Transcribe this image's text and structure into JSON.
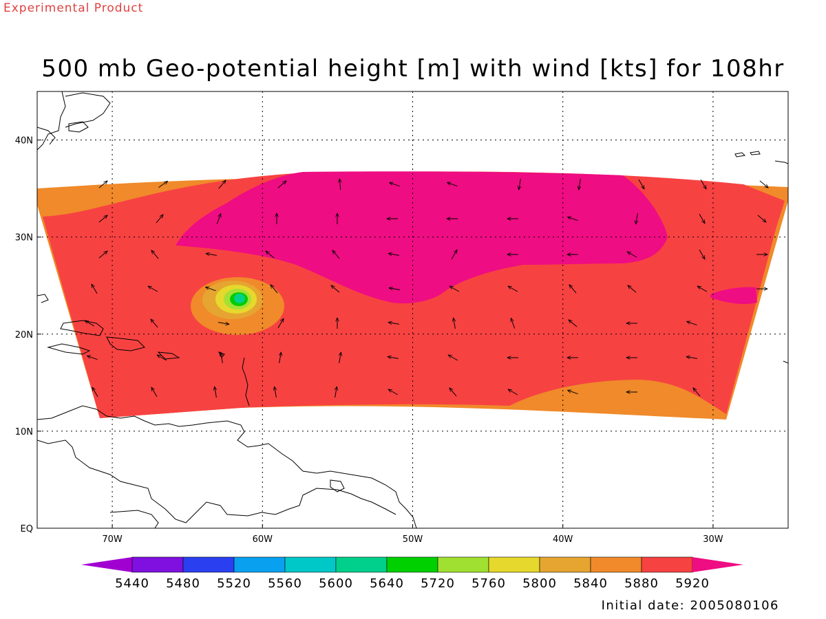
{
  "header": {
    "experimental_label": "Experimental Product",
    "title": "500 mb Geo-potential height [m] with wind [kts] for 108hr"
  },
  "footer": {
    "initial_date": "Initial date: 2005080106"
  },
  "map": {
    "lon_range": [
      -75,
      -25
    ],
    "lat_range": [
      0,
      45
    ],
    "lon_ticks": [
      "70W",
      "60W",
      "50W",
      "40W",
      "30W"
    ],
    "lat_ticks": [
      "EQ",
      "10N",
      "20N",
      "30N",
      "40N"
    ],
    "grid": "dotted",
    "colors": {
      "c5840": "#e6a531",
      "c5880": "#f08a2a",
      "c5920": "#f74242",
      "c5960": "#ee0d82",
      "c5800": "#e6d82c",
      "c5760": "#a5e036",
      "c5720": "#1ac95a",
      "c5640": "#00cc00",
      "c5600": "#00d08c"
    }
  },
  "colorbar": {
    "labels": [
      "5440",
      "5480",
      "5520",
      "5560",
      "5600",
      "5640",
      "5720",
      "5760",
      "5800",
      "5840",
      "5880",
      "5920"
    ],
    "colors": [
      "#a000d0",
      "#7f10e0",
      "#2a40f0",
      "#0aa0f0",
      "#00c8c8",
      "#00d08c",
      "#00d000",
      "#a0e030",
      "#e6d82c",
      "#e6a531",
      "#f08a2a",
      "#f74242",
      "#ee0d82"
    ]
  }
}
